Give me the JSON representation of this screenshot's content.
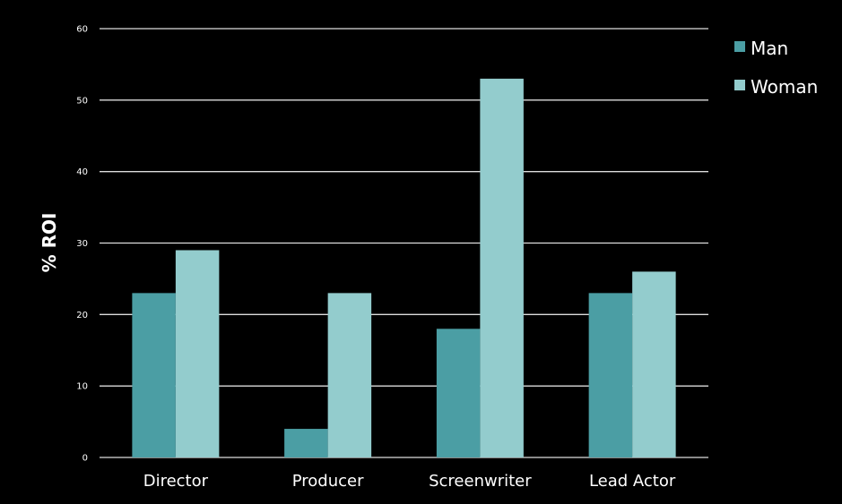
{
  "chart_data": {
    "type": "bar",
    "ylabel": "% ROI",
    "categories": [
      "Director",
      "Producer",
      "Screenwriter",
      "Lead Actor"
    ],
    "series": [
      {
        "name": "Man",
        "values": [
          23,
          4,
          18,
          23
        ],
        "color": "#4b9ea4"
      },
      {
        "name": "Woman",
        "values": [
          29,
          23,
          53,
          26
        ],
        "color": "#93cccd"
      }
    ],
    "ylim": [
      0,
      60
    ],
    "yticks": [
      0,
      10,
      20,
      30,
      40,
      50,
      60
    ],
    "grid": true,
    "legend_position": "top-right",
    "background": "#000000",
    "text_color": "#ffffff"
  }
}
